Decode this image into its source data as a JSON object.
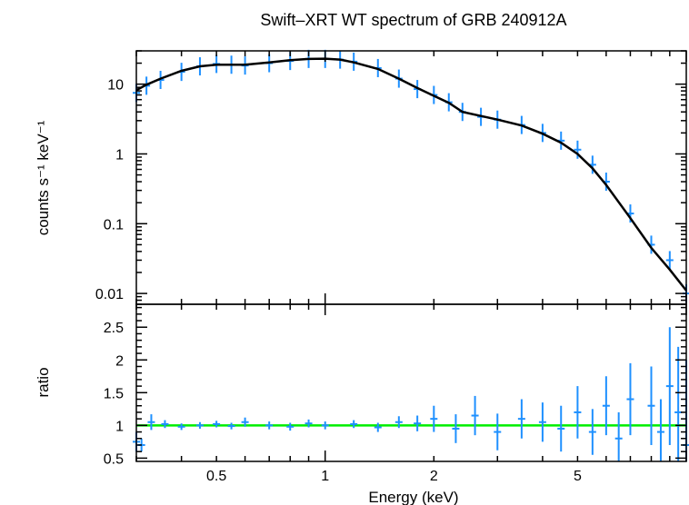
{
  "chart_data": [
    {
      "type": "scatter",
      "panel": "spectrum",
      "title": "Swift–XRT WT spectrum of GRB 240912A",
      "xlabel": "",
      "ylabel": "counts s⁻¹ keV⁻¹",
      "xscale": "log",
      "yscale": "log",
      "xlim": [
        0.3,
        10
      ],
      "ylim": [
        0.007,
        30
      ],
      "yticks": [
        {
          "value": 10,
          "label": "10"
        },
        {
          "value": 1,
          "label": "1"
        },
        {
          "value": 0.1,
          "label": "0.1"
        },
        {
          "value": 0.01,
          "label": "0.01"
        }
      ],
      "series": [
        {
          "role": "data",
          "color": "#1e90ff",
          "x": [
            0.3,
            0.32,
            0.35,
            0.4,
            0.45,
            0.5,
            0.55,
            0.6,
            0.7,
            0.8,
            0.9,
            1.0,
            1.1,
            1.2,
            1.4,
            1.6,
            1.8,
            2.0,
            2.2,
            2.4,
            2.7,
            3.0,
            3.5,
            4.0,
            4.5,
            5.0,
            5.5,
            6.0,
            7.0,
            8.0,
            9.0,
            10.0
          ],
          "y": [
            7.5,
            9.5,
            11.5,
            15,
            18,
            19.5,
            19,
            18.5,
            20,
            21.5,
            23,
            23,
            22.5,
            21,
            17,
            12,
            8.5,
            7,
            5.5,
            4,
            3.4,
            3.1,
            2.6,
            2.0,
            1.55,
            1.15,
            0.7,
            0.4,
            0.14,
            0.05,
            0.03,
            0.01
          ]
        },
        {
          "role": "model",
          "color": "#000000",
          "x": [
            0.3,
            0.32,
            0.35,
            0.4,
            0.45,
            0.5,
            0.55,
            0.6,
            0.7,
            0.8,
            0.9,
            1.0,
            1.1,
            1.2,
            1.4,
            1.6,
            1.8,
            2.0,
            2.2,
            2.4,
            2.7,
            3.0,
            3.5,
            4.0,
            4.5,
            5.0,
            5.5,
            6.0,
            7.0,
            8.0,
            9.0,
            10.0
          ],
          "y": [
            8.2,
            9.8,
            12,
            15.5,
            18,
            19,
            19,
            19,
            20.5,
            22,
            23,
            23.2,
            22.5,
            20.5,
            16.5,
            12,
            8.8,
            6.8,
            5.4,
            4.0,
            3.5,
            3.1,
            2.55,
            1.95,
            1.45,
            1.0,
            0.62,
            0.36,
            0.12,
            0.045,
            0.022,
            0.011
          ]
        }
      ]
    },
    {
      "type": "scatter",
      "panel": "ratio",
      "xlabel": "Energy (keV)",
      "ylabel": "ratio",
      "xscale": "log",
      "xlim": [
        0.3,
        10
      ],
      "ylim": [
        0.45,
        2.85
      ],
      "xticks": [
        {
          "value": 0.5,
          "label": "0.5"
        },
        {
          "value": 1,
          "label": "1"
        },
        {
          "value": 2,
          "label": "2"
        },
        {
          "value": 5,
          "label": "5"
        }
      ],
      "yticks": [
        {
          "value": 0.5,
          "label": "0.5"
        },
        {
          "value": 1,
          "label": "1"
        },
        {
          "value": 1.5,
          "label": "1.5"
        },
        {
          "value": 2,
          "label": "2"
        },
        {
          "value": 2.5,
          "label": "2.5"
        }
      ],
      "reference_line": {
        "y": 1,
        "color": "#00ee00"
      },
      "series": [
        {
          "role": "data",
          "color": "#1e90ff",
          "x": [
            0.3,
            0.31,
            0.33,
            0.36,
            0.4,
            0.45,
            0.5,
            0.55,
            0.6,
            0.7,
            0.8,
            0.9,
            1.0,
            1.2,
            1.4,
            1.6,
            1.8,
            2.0,
            2.3,
            2.6,
            3.0,
            3.5,
            4.0,
            4.5,
            5.0,
            5.5,
            6.0,
            6.5,
            7.0,
            8.0,
            8.5,
            9.0,
            9.5,
            10.0
          ],
          "y": [
            0.75,
            0.7,
            1.05,
            1.02,
            0.98,
            1.0,
            1.02,
            0.99,
            1.05,
            1.0,
            0.98,
            1.03,
            1.0,
            1.02,
            0.97,
            1.05,
            1.03,
            1.1,
            0.95,
            1.15,
            0.9,
            1.1,
            1.05,
            0.95,
            1.2,
            0.9,
            1.3,
            0.8,
            1.4,
            1.3,
            0.9,
            1.6,
            1.2,
            0.7
          ],
          "err": [
            0.15,
            0.1,
            0.12,
            0.06,
            0.05,
            0.05,
            0.05,
            0.05,
            0.07,
            0.06,
            0.06,
            0.06,
            0.06,
            0.06,
            0.07,
            0.09,
            0.12,
            0.2,
            0.22,
            0.3,
            0.28,
            0.3,
            0.3,
            0.35,
            0.4,
            0.35,
            0.45,
            0.4,
            0.55,
            0.6,
            0.5,
            0.9,
            1.0,
            1.3
          ]
        }
      ]
    }
  ]
}
